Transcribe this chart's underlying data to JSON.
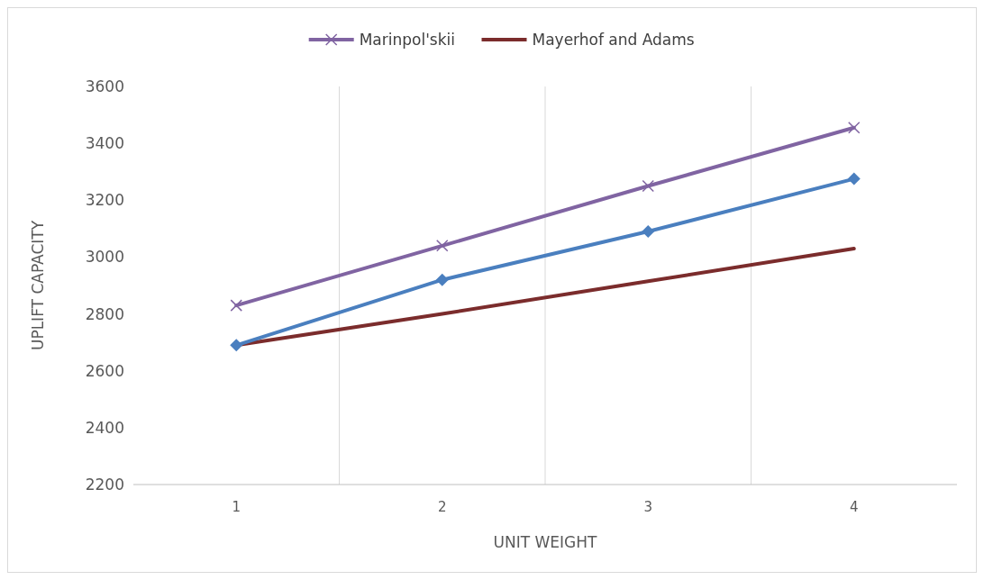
{
  "chart_data": {
    "type": "line",
    "xlabel": "UNIT WEIGHT",
    "ylabel": "UPLIFT CAPACITY",
    "categories": [
      "1",
      "2",
      "3",
      "4"
    ],
    "series": [
      {
        "name": "Marinpol'skii",
        "color": "#8064a2",
        "values": [
          2830,
          3040,
          3250,
          3455
        ],
        "marker": "cross"
      },
      {
        "name": "Mayerhof and Adams",
        "color": "#7b2c2c",
        "values": [
          2690,
          2800,
          2915,
          3030
        ],
        "marker": "none"
      },
      {
        "color": "#4a7fbf",
        "values": [
          2690,
          2920,
          3090,
          3275
        ],
        "marker": "diamond"
      }
    ],
    "ylim": [
      2200,
      3600
    ],
    "yticks": [
      2200,
      2400,
      2600,
      2800,
      3000,
      3200,
      3400,
      3600
    ],
    "grid": "x",
    "legend": "top"
  }
}
